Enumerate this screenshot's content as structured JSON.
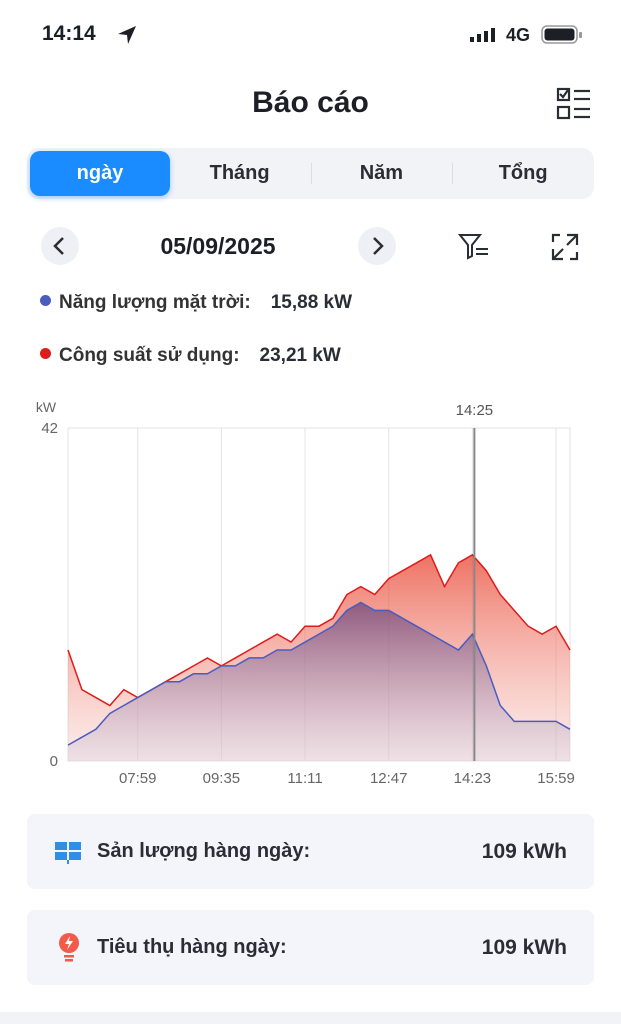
{
  "status_bar": {
    "time": "14:14",
    "network": "4G"
  },
  "header": {
    "title": "Báo cáo"
  },
  "tabs": [
    "ngày",
    "Tháng",
    "Năm",
    "Tổng"
  ],
  "active_tab": 0,
  "date": "05/09/2025",
  "chart_data": {
    "type": "area",
    "y_label": "kW",
    "cursor_label": "14:25",
    "categories": [
      null,
      null,
      null,
      null,
      null,
      "07:59",
      null,
      null,
      null,
      null,
      null,
      "09:35",
      null,
      null,
      null,
      null,
      null,
      "11:11",
      null,
      null,
      null,
      null,
      null,
      "12:47",
      null,
      null,
      null,
      null,
      null,
      "14:23",
      null,
      null,
      null,
      null,
      null,
      "15:59",
      null
    ],
    "ylim": [
      0,
      42
    ],
    "yticks": [
      0,
      42
    ],
    "grid": true,
    "series": [
      {
        "name": "Năng lượng mặt trời:",
        "current_value": "15,88 kW",
        "color": "#4a5cc0",
        "values": [
          2,
          3,
          4,
          6,
          7,
          8,
          9,
          10,
          10,
          11,
          11,
          12,
          12,
          13,
          13,
          14,
          14,
          15,
          16,
          17,
          19,
          20,
          19,
          19,
          18,
          17,
          16,
          15,
          14,
          16,
          12,
          7,
          5,
          5,
          5,
          5,
          4
        ]
      },
      {
        "name": "Công suất sử dụng:",
        "current_value": "23,21 kW",
        "color": "#e01b1b",
        "values": [
          14,
          9,
          8,
          7,
          9,
          8,
          9,
          10,
          11,
          12,
          13,
          12,
          13,
          14,
          15,
          16,
          15,
          17,
          17,
          18,
          21,
          22,
          21,
          23,
          24,
          25,
          26,
          22,
          25,
          26,
          24,
          21,
          19,
          17,
          16,
          17,
          14
        ]
      }
    ]
  },
  "summary": [
    {
      "label": "Sản lượng hàng ngày:",
      "value": "109 kWh"
    },
    {
      "label": "Tiêu thụ hàng ngày:",
      "value": "109 kWh"
    }
  ]
}
